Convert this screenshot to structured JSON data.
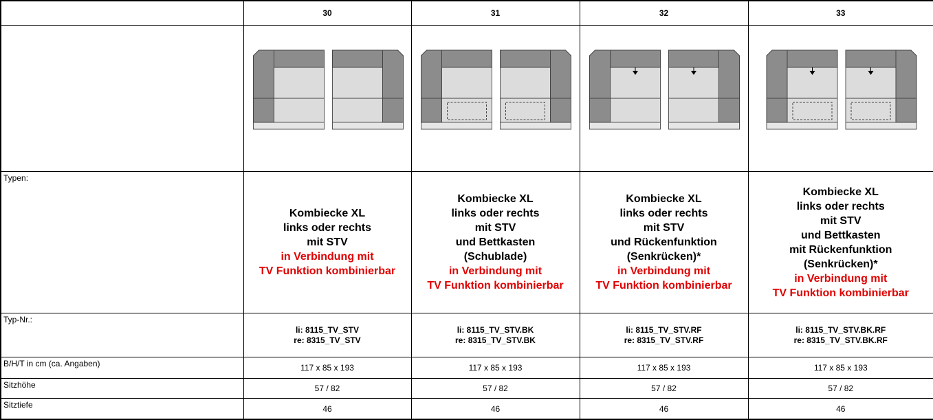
{
  "header": {
    "columns": [
      "30",
      "31",
      "32",
      "33"
    ]
  },
  "rows": {
    "types": {
      "label": "Typen:",
      "cells": [
        {
          "black": [
            "Kombiecke XL",
            "links oder rechts",
            "mit STV"
          ],
          "red": [
            "in Verbindung mit",
            "TV Funktion kombinierbar"
          ]
        },
        {
          "black": [
            "Kombiecke XL",
            "links oder rechts",
            "mit STV",
            "und Bettkasten",
            "(Schublade)"
          ],
          "red": [
            "in Verbindung mit",
            "TV Funktion kombinierbar"
          ]
        },
        {
          "black": [
            "Kombiecke XL",
            "links oder rechts",
            "mit STV",
            "und Rückenfunktion",
            "(Senkrücken)*"
          ],
          "red": [
            "in Verbindung mit",
            "TV Funktion kombinierbar"
          ]
        },
        {
          "black": [
            "Kombiecke XL",
            "links oder rechts",
            "mit STV",
            "und Bettkasten",
            "mit Rückenfunktion",
            "(Senkrücken)*"
          ],
          "red": [
            "in Verbindung mit",
            "TV Funktion kombinierbar"
          ]
        }
      ]
    },
    "type_numbers": {
      "label": "Typ-Nr.:",
      "cells": [
        [
          "li: 8115_TV_STV",
          "re: 8315_TV_STV"
        ],
        [
          "li: 8115_TV_STV.BK",
          "re: 8315_TV_STV.BK"
        ],
        [
          "li: 8115_TV_STV.RF",
          "re: 8315_TV_STV.RF"
        ],
        [
          "li: 8115_TV_STV.BK.RF",
          "re: 8315_TV_STV.BK.RF"
        ]
      ]
    },
    "dimensions": {
      "label": "B/H/T in cm (ca. Angaben)",
      "cells": [
        "117 x 85 x 193",
        "117 x 85 x 193",
        "117 x 85 x 193",
        "117 x 85 x 193"
      ]
    },
    "seat_height": {
      "label": "Sitzhöhe",
      "cells": [
        "57 / 82",
        "57 / 82",
        "57 / 82",
        "57 / 82"
      ]
    },
    "seat_depth": {
      "label": "Sitztiefe",
      "cells": [
        "46",
        "46",
        "46",
        "46"
      ]
    }
  }
}
